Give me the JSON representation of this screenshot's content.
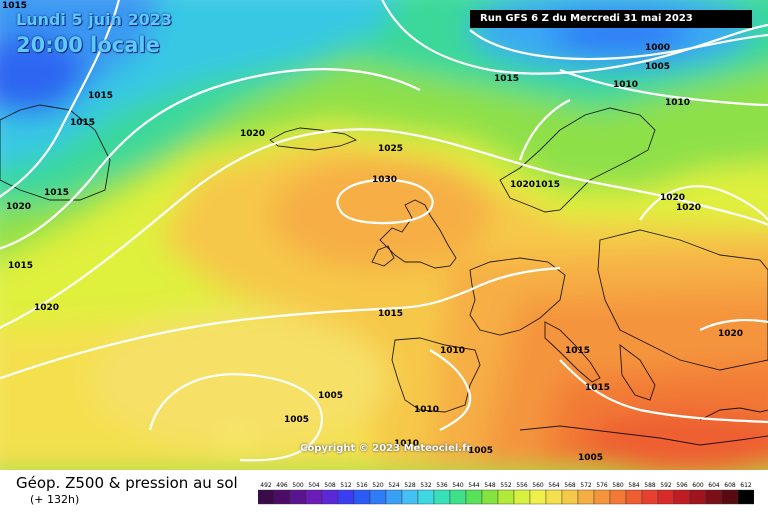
{
  "header": {
    "date": "Lundi 5 juin 2023",
    "time": "20:00 locale",
    "run": "Run GFS 6 Z du Mercredi 31 mai 2023"
  },
  "copyright": "Copyright © 2023 Meteociel.fr",
  "footer": {
    "title": "Géop. Z500 & pression au sol",
    "forecast_hour": "(+ 132h)"
  },
  "isobar_labels": [
    "1015",
    "1015",
    "1015",
    "1020",
    "1015",
    "1020",
    "1015",
    "1020",
    "1025",
    "1030",
    "1015",
    "1010",
    "1005",
    "1005",
    "1010",
    "1010",
    "1005",
    "1000",
    "1005",
    "1015",
    "1010",
    "1010",
    "1020",
    "1015",
    "1020",
    "1020",
    "1020",
    "1015",
    "1015",
    "1005"
  ],
  "scale": {
    "values": [
      "492",
      "496",
      "500",
      "504",
      "508",
      "512",
      "516",
      "520",
      "524",
      "528",
      "532",
      "536",
      "540",
      "544",
      "548",
      "552",
      "556",
      "560",
      "564",
      "568",
      "572",
      "576",
      "580",
      "584",
      "588",
      "592",
      "596",
      "600",
      "604",
      "608",
      "612"
    ],
    "colors": [
      "#3a0a4a",
      "#4b0c68",
      "#5a1490",
      "#6a1cb8",
      "#5a28d8",
      "#3b3ef0",
      "#2a5cf5",
      "#2f7cf6",
      "#3aa0f5",
      "#44c0f2",
      "#3ed8e0",
      "#38e0b8",
      "#3ee08a",
      "#5be05a",
      "#86e23e",
      "#b2ea3a",
      "#d8f03e",
      "#f0f04a",
      "#f4e04e",
      "#f6c84a",
      "#f6ae44",
      "#f4943c",
      "#f27a36",
      "#ee5e30",
      "#e84030",
      "#d82a2a",
      "#c01c24",
      "#a0141e",
      "#7c0e18",
      "#580a12",
      "#000000"
    ]
  }
}
